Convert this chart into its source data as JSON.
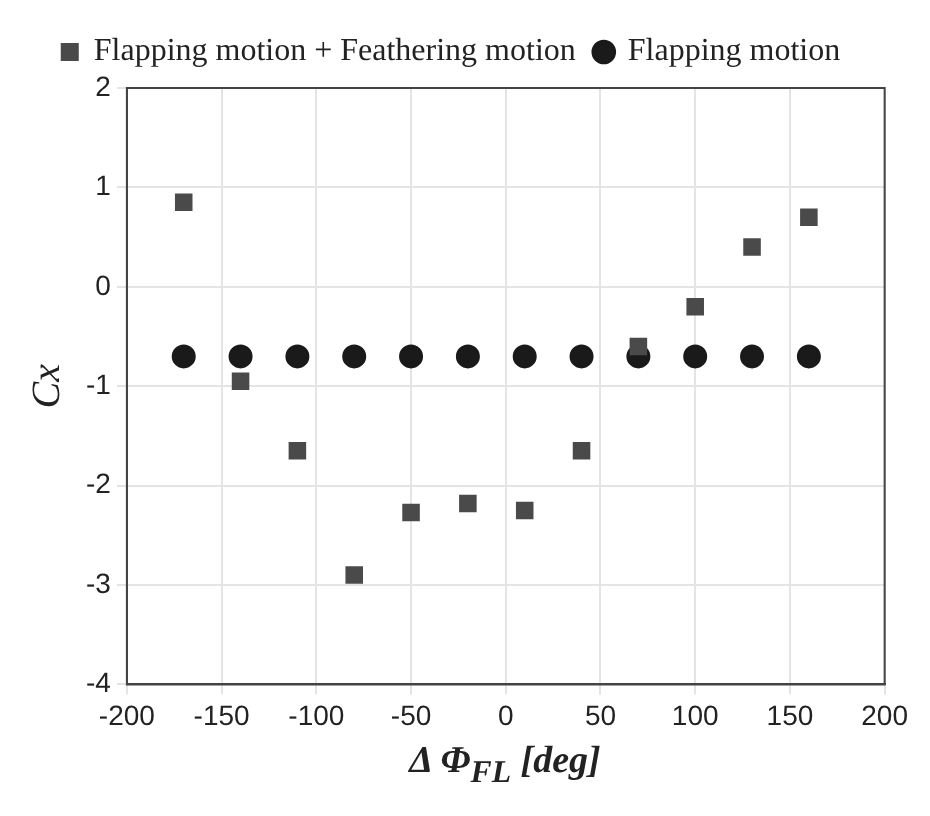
{
  "chart_data": {
    "type": "scatter",
    "xlabel": "Δ Φ$_{FL}$ [deg]",
    "ylabel": "Cx",
    "x": [
      -170,
      -140,
      -110,
      -80,
      -50,
      -20,
      10,
      40,
      70,
      100,
      130,
      160
    ],
    "series": [
      {
        "name": "Flapping motion + Feathering motion",
        "color": "#4a4a4a",
        "marker": "square",
        "values": [
          0.85,
          -0.95,
          -1.65,
          -2.9,
          -2.27,
          -2.18,
          -2.25,
          -1.65,
          -0.6,
          -0.2,
          0.4,
          0.7
        ]
      },
      {
        "name": "Flapping motion",
        "color": "#1a1a1a",
        "marker": "circle",
        "values": [
          -0.7,
          -0.7,
          -0.7,
          -0.7,
          -0.7,
          -0.7,
          -0.7,
          -0.7,
          -0.7,
          -0.7,
          -0.7,
          -0.7
        ]
      }
    ],
    "xlim": [
      -200,
      200
    ],
    "xticks": [
      -200,
      -150,
      -100,
      -50,
      0,
      50,
      100,
      150,
      200
    ],
    "ylim": [
      -4,
      2
    ],
    "yticks": [
      -4,
      -3,
      -2,
      -1,
      0,
      1,
      2
    ],
    "grid": true,
    "legend": "top"
  }
}
